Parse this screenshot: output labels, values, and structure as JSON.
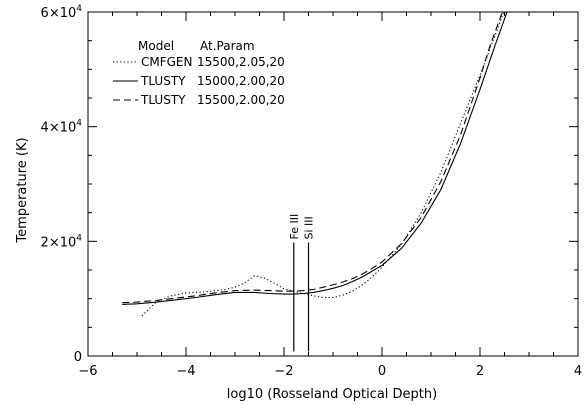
{
  "chart_data": {
    "type": "line",
    "title": "",
    "xlabel": "log10 (Rosseland Optical Depth)",
    "ylabel": "Temperature (K)",
    "xlim": [
      -6,
      4
    ],
    "ylim": [
      0,
      60000
    ],
    "x_ticks": [
      -6,
      -4,
      -2,
      0,
      2,
      4
    ],
    "x_tick_labels": [
      "−6",
      "−4",
      "−2",
      "0",
      "2",
      "4"
    ],
    "y_ticks": [
      {
        "value": 0,
        "mantissa": "0",
        "exponent": ""
      },
      {
        "value": 20000,
        "mantissa": "2×10",
        "exponent": "4"
      },
      {
        "value": 40000,
        "mantissa": "4×10",
        "exponent": "4"
      },
      {
        "value": 60000,
        "mantissa": "6×10",
        "exponent": "4"
      }
    ],
    "grid": false,
    "legend": {
      "position": "top-left",
      "header_model": "Model",
      "header_param": "At.Param"
    },
    "series": [
      {
        "name": "CMFGEN",
        "param": "15500,2.05,20",
        "style": "dotted",
        "x": [
          -4.9,
          -4.6,
          -4.3,
          -4.0,
          -3.6,
          -3.2,
          -3.0,
          -2.8,
          -2.6,
          -2.4,
          -2.2,
          -2.0,
          -1.8,
          -1.6,
          -1.4,
          -1.2,
          -1.0,
          -0.8,
          -0.6,
          -0.4,
          -0.2,
          0.0,
          0.4,
          0.8,
          1.2,
          1.6,
          2.0,
          2.4,
          2.6
        ],
        "y": [
          7000,
          9500,
          10500,
          11000,
          11200,
          11600,
          12000,
          12800,
          14000,
          13600,
          12700,
          11700,
          11300,
          10900,
          10500,
          10200,
          10200,
          10600,
          11300,
          12400,
          13800,
          15500,
          19500,
          25000,
          32000,
          40500,
          49000,
          58000,
          63000
        ]
      },
      {
        "name": "TLUSTY",
        "param": "15000,2.00,20",
        "style": "solid",
        "x": [
          -5.3,
          -5.0,
          -4.6,
          -4.2,
          -3.8,
          -3.4,
          -3.0,
          -2.6,
          -2.3,
          -2.0,
          -1.8,
          -1.6,
          -1.4,
          -1.2,
          -1.0,
          -0.8,
          -0.6,
          -0.4,
          -0.2,
          0.0,
          0.4,
          0.8,
          1.2,
          1.6,
          2.0,
          2.3,
          2.55
        ],
        "y": [
          9000,
          9100,
          9400,
          9800,
          10200,
          10700,
          11100,
          11100,
          10900,
          10800,
          10800,
          10900,
          11100,
          11400,
          11800,
          12300,
          13000,
          13800,
          14800,
          15800,
          18800,
          23200,
          29000,
          37000,
          46500,
          54000,
          60000
        ]
      },
      {
        "name": "TLUSTY",
        "param": "15500,2.00,20",
        "style": "dashed",
        "x": [
          -5.3,
          -5.0,
          -4.6,
          -4.2,
          -3.8,
          -3.4,
          -3.0,
          -2.6,
          -2.3,
          -2.0,
          -1.8,
          -1.6,
          -1.4,
          -1.2,
          -1.0,
          -0.8,
          -0.6,
          -0.4,
          -0.2,
          0.0,
          0.4,
          0.8,
          1.2,
          1.6,
          2.0,
          2.2,
          2.5
        ],
        "y": [
          9300,
          9400,
          9700,
          10100,
          10500,
          11000,
          11400,
          11500,
          11400,
          11300,
          11300,
          11400,
          11600,
          12000,
          12400,
          12900,
          13500,
          14300,
          15300,
          16400,
          19600,
          24200,
          30400,
          38500,
          48500,
          54000,
          61000
        ]
      }
    ],
    "annotations": [
      {
        "text": "Fe III",
        "x": -1.8,
        "y_bottom": 800,
        "y_top": 19800
      },
      {
        "text": "Si III",
        "x": -1.5,
        "y_bottom": 800,
        "y_top": 19800
      }
    ]
  }
}
